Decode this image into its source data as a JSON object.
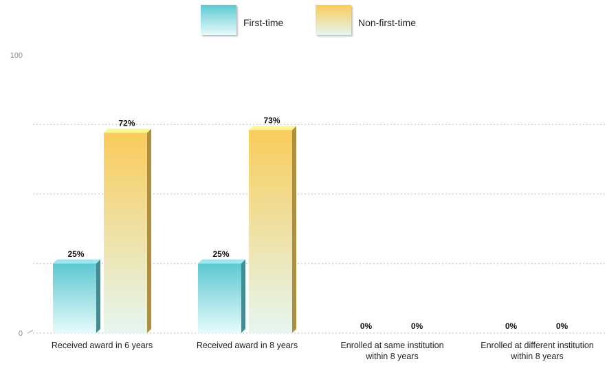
{
  "chart_data": {
    "type": "bar",
    "categories": [
      [
        "Received award in 6 years"
      ],
      [
        "Received award in 8 years"
      ],
      [
        "Enrolled at same institution",
        "within 8 years"
      ],
      [
        "Enrolled at different institution",
        "within 8 years"
      ]
    ],
    "series": [
      {
        "name": "First-time",
        "values": [
          25,
          25,
          0,
          0
        ],
        "color_top": "#5ec8d2",
        "color_bottom": "#e6fbfb"
      },
      {
        "name": "Non-first-time",
        "values": [
          72,
          73,
          0,
          0
        ],
        "color_top": "#f9cc5a",
        "color_bottom": "#e6f6f0"
      }
    ],
    "value_suffix": "%",
    "ylim": [
      0,
      100
    ],
    "y_tick_labels": [
      "0",
      "100"
    ],
    "gridlines": [
      0,
      25,
      50,
      75
    ],
    "grid": true,
    "legend_position": "top-center"
  }
}
